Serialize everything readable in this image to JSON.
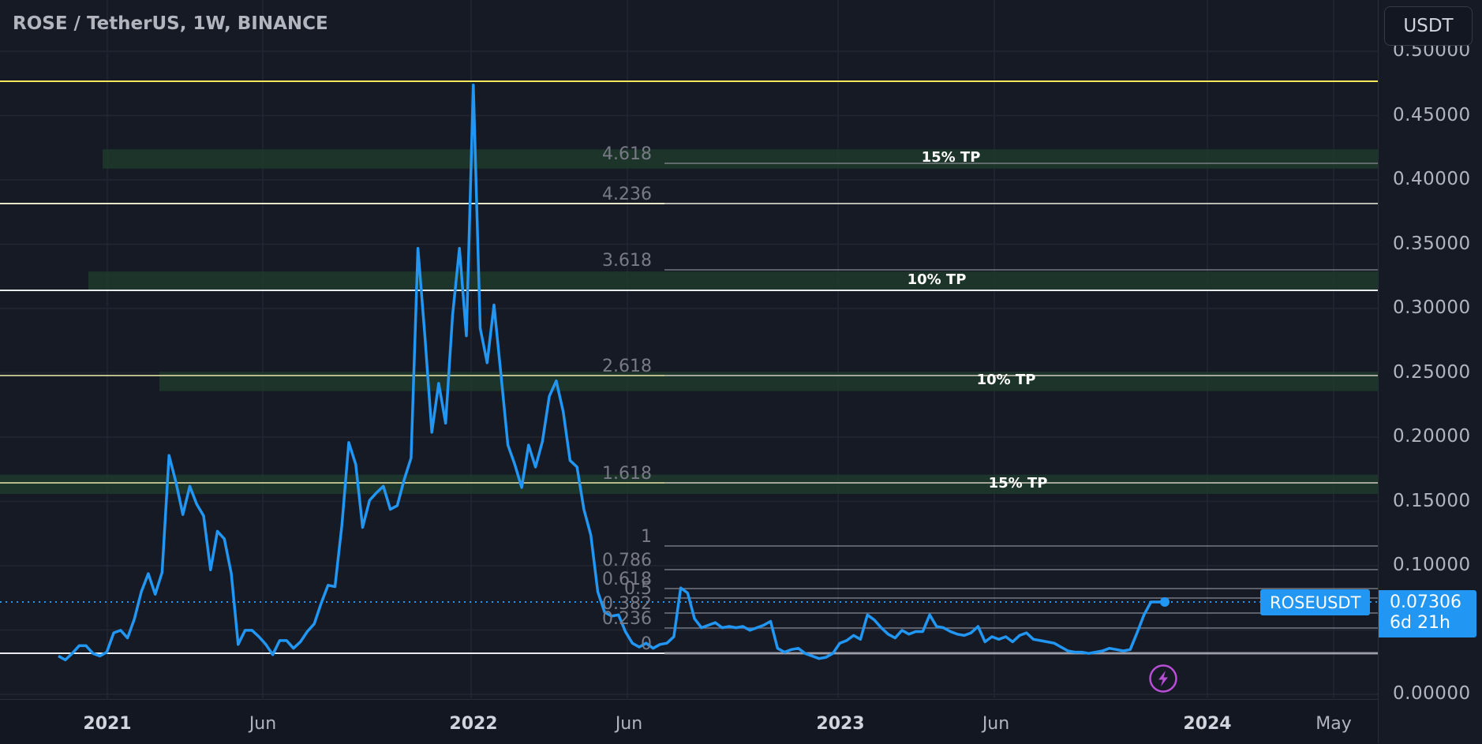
{
  "header": {
    "title": "ROSE / TetherUS, 1W, BINANCE",
    "currency_button": "USDT"
  },
  "y_axis": {
    "labels": [
      "0.50000",
      "0.45000",
      "0.40000",
      "0.35000",
      "0.30000",
      "0.25000",
      "0.20000",
      "0.15000",
      "0.10000",
      "0.05000",
      "0.00000"
    ]
  },
  "x_axis": {
    "labels": [
      {
        "text": "2021",
        "year": true
      },
      {
        "text": "Jun",
        "year": false
      },
      {
        "text": "2022",
        "year": true
      },
      {
        "text": "Jun",
        "year": false
      },
      {
        "text": "2023",
        "year": true
      },
      {
        "text": "Jun",
        "year": false
      },
      {
        "text": "2024",
        "year": true
      },
      {
        "text": "May",
        "year": false
      }
    ]
  },
  "fib_levels": [
    "4.618",
    "4.236",
    "3.618",
    "2.618",
    "1.618",
    "1",
    "0.786",
    "0.618",
    "0.5",
    "0.382",
    "0.236",
    "0"
  ],
  "tp_zones": [
    "15% TP",
    "10% TP",
    "10% TP",
    "15% TP"
  ],
  "last_price": {
    "symbol": "ROSEUSDT",
    "price": "0.07306",
    "countdown": "6d 21h"
  },
  "colors": {
    "background": "#161a25",
    "price_line": "#2196f3",
    "tp_zone": "#1f3a2c",
    "yellow_line": "#f5e85a",
    "fib_line": "#9598a1",
    "flash_icon": "#b84fd6"
  },
  "chart_data": {
    "type": "line",
    "title": "ROSE / TetherUS, 1W, BINANCE",
    "xlabel": "",
    "ylabel": "USDT",
    "ylim": [
      0.0,
      0.52
    ],
    "grid": true,
    "x_ticks": [
      "2021",
      "Jun",
      "2022",
      "Jun",
      "2023",
      "Jun",
      "2024",
      "May"
    ],
    "y_ticks": [
      0.0,
      0.05,
      0.1,
      0.15,
      0.2,
      0.25,
      0.3,
      0.35,
      0.4,
      0.45,
      0.5
    ],
    "series": [
      {
        "name": "ROSEUSDT close (weekly, approx)",
        "x_start": "2020-11",
        "values": [
          0.031,
          0.028,
          0.033,
          0.039,
          0.039,
          0.033,
          0.031,
          0.034,
          0.049,
          0.051,
          0.045,
          0.06,
          0.081,
          0.095,
          0.079,
          0.096,
          0.187,
          0.166,
          0.141,
          0.163,
          0.149,
          0.14,
          0.098,
          0.128,
          0.122,
          0.095,
          0.04,
          0.051,
          0.051,
          0.046,
          0.04,
          0.032,
          0.043,
          0.043,
          0.037,
          0.042,
          0.05,
          0.056,
          0.072,
          0.086,
          0.085,
          0.133,
          0.197,
          0.18,
          0.131,
          0.152,
          0.158,
          0.163,
          0.145,
          0.148,
          0.168,
          0.185,
          0.348,
          0.28,
          0.205,
          0.243,
          0.212,
          0.296,
          0.348,
          0.28,
          0.475,
          0.286,
          0.259,
          0.304,
          0.25,
          0.195,
          0.18,
          0.162,
          0.195,
          0.178,
          0.198,
          0.233,
          0.245,
          0.221,
          0.183,
          0.178,
          0.145,
          0.125,
          0.081,
          0.065,
          0.062,
          0.063,
          0.05,
          0.041,
          0.038,
          0.041,
          0.037,
          0.04,
          0.041,
          0.046,
          0.084,
          0.08,
          0.06,
          0.053,
          0.055,
          0.057,
          0.053,
          0.054,
          0.053,
          0.054,
          0.051,
          0.053,
          0.055,
          0.058,
          0.037,
          0.034,
          0.036,
          0.037,
          0.033,
          0.031,
          0.029,
          0.03,
          0.033,
          0.041,
          0.043,
          0.047,
          0.044,
          0.063,
          0.059,
          0.053,
          0.048,
          0.045,
          0.051,
          0.048,
          0.05,
          0.05,
          0.063,
          0.054,
          0.053,
          0.05,
          0.048,
          0.047,
          0.049,
          0.054,
          0.042,
          0.046,
          0.044,
          0.046,
          0.042,
          0.047,
          0.049,
          0.044,
          0.043,
          0.042,
          0.041,
          0.038,
          0.035,
          0.034,
          0.034,
          0.033,
          0.034,
          0.035,
          0.037,
          0.036,
          0.035,
          0.036,
          0.049,
          0.063,
          0.073,
          0.073,
          0.073
        ]
      }
    ],
    "horizontal_lines": [
      {
        "price": 0.48,
        "color": "yellow"
      },
      {
        "price": 0.402,
        "color": "cream"
      },
      {
        "price": 0.33,
        "color": "white"
      },
      {
        "price": 0.252,
        "color": "khaki"
      },
      {
        "price": 0.172,
        "color": "khaki"
      },
      {
        "price": 0.032,
        "color": "white"
      }
    ],
    "tp_zones": [
      {
        "label": "15% TP",
        "from": 0.41,
        "to": 0.425
      },
      {
        "label": "10% TP",
        "from": 0.315,
        "to": 0.33
      },
      {
        "label": "10% TP",
        "from": 0.237,
        "to": 0.252
      },
      {
        "label": "15% TP",
        "from": 0.157,
        "to": 0.172
      }
    ],
    "fibonacci_extension": [
      {
        "level": "4.618",
        "price": 0.424
      },
      {
        "level": "4.236",
        "price": 0.402
      },
      {
        "level": "3.618",
        "price": 0.355
      },
      {
        "level": "2.618",
        "price": 0.253
      },
      {
        "level": "1.618",
        "price": 0.172
      },
      {
        "level": "1",
        "price": 0.114
      },
      {
        "level": "0.786",
        "price": 0.099
      },
      {
        "level": "0.618",
        "price": 0.087
      },
      {
        "level": "0.5",
        "price": 0.078
      },
      {
        "level": "0.382",
        "price": 0.071
      },
      {
        "level": "0.236",
        "price": 0.061
      },
      {
        "level": "0",
        "price": 0.032
      }
    ],
    "last_value": 0.07306
  }
}
